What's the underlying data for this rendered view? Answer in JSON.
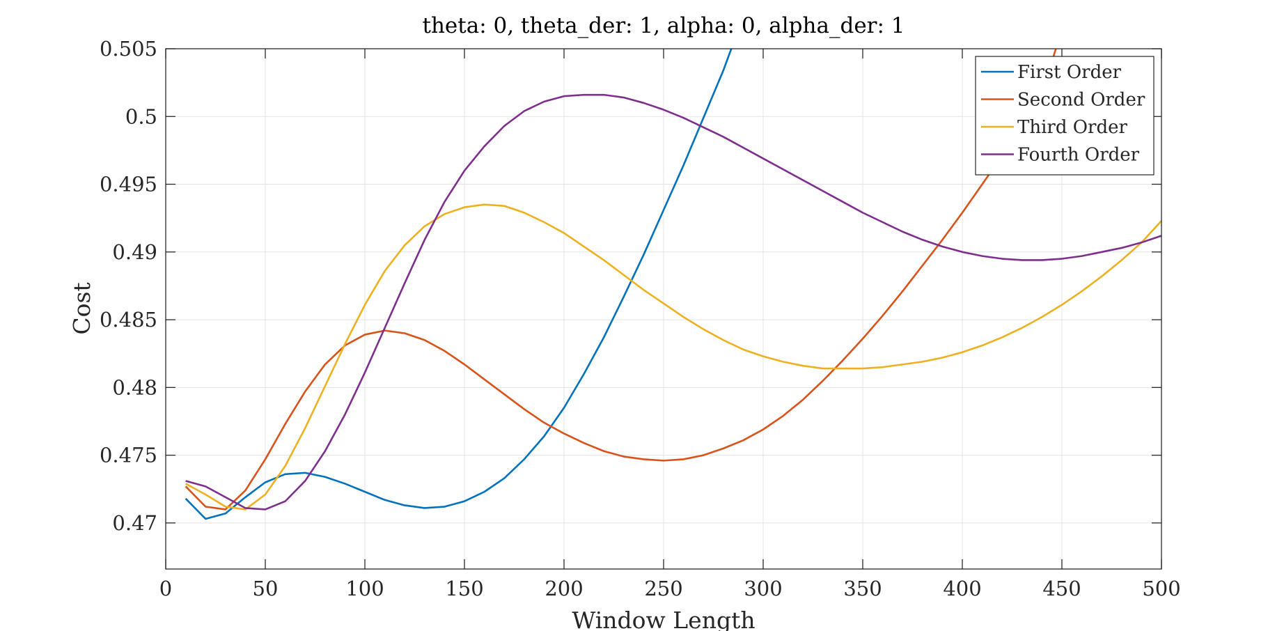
{
  "chart_data": {
    "type": "line",
    "title": "theta: 0, theta_der: 1, alpha: 0, alpha_der: 1",
    "xlabel": "Window Length",
    "ylabel": "Cost",
    "xlim": [
      0,
      500
    ],
    "ylim": [
      0.4666,
      0.505
    ],
    "xticks": [
      0,
      50,
      100,
      150,
      200,
      250,
      300,
      350,
      400,
      450,
      500
    ],
    "yticks": [
      0.47,
      0.475,
      0.48,
      0.485,
      0.49,
      0.495,
      0.5,
      0.505
    ],
    "ytick_labels": [
      "0.47",
      "0.475",
      "0.48",
      "0.485",
      "0.49",
      "0.495",
      "0.5",
      "0.505"
    ],
    "grid": true,
    "legend_position": "top-right",
    "series": [
      {
        "name": "First Order",
        "color": "#0072BD",
        "x": [
          10,
          20,
          30,
          40,
          50,
          60,
          70,
          80,
          90,
          100,
          110,
          120,
          130,
          140,
          150,
          160,
          170,
          180,
          190,
          200,
          210,
          220,
          230,
          240,
          250,
          260,
          270,
          280,
          284
        ],
        "y": [
          0.4718,
          0.4703,
          0.4707,
          0.4719,
          0.473,
          0.4736,
          0.4737,
          0.4734,
          0.4729,
          0.4723,
          0.4717,
          0.4713,
          0.4711,
          0.4712,
          0.4716,
          0.4723,
          0.4733,
          0.4747,
          0.4764,
          0.4785,
          0.481,
          0.4837,
          0.4867,
          0.4898,
          0.4931,
          0.4964,
          0.4999,
          0.5034,
          0.505
        ]
      },
      {
        "name": "Second Order",
        "color": "#D95319",
        "x": [
          10,
          20,
          30,
          40,
          50,
          60,
          70,
          80,
          90,
          100,
          110,
          120,
          130,
          140,
          150,
          160,
          170,
          180,
          190,
          200,
          210,
          220,
          230,
          240,
          250,
          260,
          270,
          280,
          290,
          300,
          310,
          320,
          330,
          340,
          350,
          360,
          370,
          380,
          390,
          400,
          410,
          420,
          430,
          440,
          447
        ],
        "y": [
          0.4727,
          0.4712,
          0.471,
          0.4724,
          0.4747,
          0.4773,
          0.4797,
          0.4817,
          0.4831,
          0.4839,
          0.4842,
          0.484,
          0.4835,
          0.4827,
          0.4817,
          0.4806,
          0.4795,
          0.4784,
          0.4774,
          0.4766,
          0.4759,
          0.4753,
          0.4749,
          0.4747,
          0.4746,
          0.4747,
          0.475,
          0.4755,
          0.4761,
          0.4769,
          0.4779,
          0.4791,
          0.4805,
          0.482,
          0.4836,
          0.4853,
          0.4871,
          0.489,
          0.4909,
          0.4929,
          0.495,
          0.4971,
          0.4993,
          0.5018,
          0.505
        ]
      },
      {
        "name": "Third Order",
        "color": "#EDB120",
        "x": [
          10,
          20,
          30,
          40,
          50,
          60,
          70,
          80,
          90,
          100,
          110,
          120,
          130,
          140,
          150,
          160,
          170,
          180,
          190,
          200,
          210,
          220,
          230,
          240,
          250,
          260,
          270,
          280,
          290,
          300,
          310,
          320,
          330,
          340,
          350,
          360,
          370,
          380,
          390,
          400,
          410,
          420,
          430,
          440,
          450,
          460,
          470,
          480,
          490,
          500
        ],
        "y": [
          0.4729,
          0.4721,
          0.4712,
          0.471,
          0.4721,
          0.4742,
          0.477,
          0.4801,
          0.4832,
          0.4861,
          0.4886,
          0.4905,
          0.4919,
          0.4928,
          0.4933,
          0.4935,
          0.4934,
          0.4929,
          0.4922,
          0.4914,
          0.4904,
          0.4894,
          0.4883,
          0.4872,
          0.4862,
          0.4852,
          0.4843,
          0.4835,
          0.4828,
          0.4823,
          0.4819,
          0.4816,
          0.4814,
          0.4814,
          0.4814,
          0.4815,
          0.4817,
          0.4819,
          0.4822,
          0.4826,
          0.4831,
          0.4837,
          0.4844,
          0.4852,
          0.4861,
          0.4871,
          0.4882,
          0.4894,
          0.4907,
          0.4923
        ]
      },
      {
        "name": "Fourth Order",
        "color": "#7E2F8E",
        "x": [
          10,
          20,
          30,
          40,
          50,
          60,
          70,
          80,
          90,
          100,
          110,
          120,
          130,
          140,
          150,
          160,
          170,
          180,
          190,
          200,
          210,
          220,
          230,
          240,
          250,
          260,
          270,
          280,
          290,
          300,
          310,
          320,
          330,
          340,
          350,
          360,
          370,
          380,
          390,
          400,
          410,
          420,
          430,
          440,
          450,
          460,
          470,
          480,
          490,
          500
        ],
        "y": [
          0.4731,
          0.4727,
          0.4719,
          0.4711,
          0.471,
          0.4716,
          0.4731,
          0.4753,
          0.478,
          0.4811,
          0.4844,
          0.4877,
          0.4909,
          0.4937,
          0.496,
          0.4978,
          0.4993,
          0.5004,
          0.5011,
          0.5015,
          0.5016,
          0.5016,
          0.5014,
          0.501,
          0.5005,
          0.4999,
          0.4992,
          0.4985,
          0.4977,
          0.4969,
          0.4961,
          0.4953,
          0.4945,
          0.4937,
          0.4929,
          0.4922,
          0.4915,
          0.4909,
          0.4904,
          0.49,
          0.4897,
          0.4895,
          0.4894,
          0.4894,
          0.4895,
          0.4897,
          0.49,
          0.4903,
          0.4907,
          0.4912
        ]
      }
    ]
  }
}
